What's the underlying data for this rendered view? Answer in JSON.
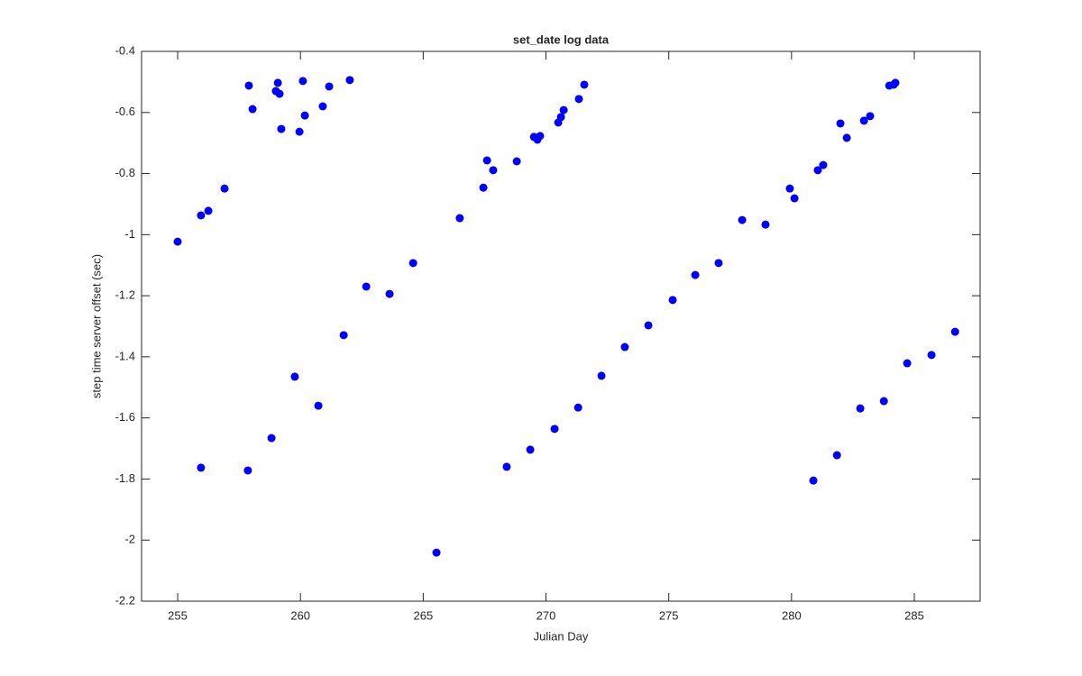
{
  "chart_data": {
    "type": "scatter",
    "title": "set_date log data",
    "x_label": "Julian Day",
    "y_label": "step time server offset (sec)",
    "color": "#0000ff",
    "x": [
      255.0,
      255.95,
      256.25,
      256.91,
      255.95,
      257.9,
      258.05,
      257.86,
      259.0,
      259.08,
      259.15,
      259.22,
      258.82,
      259.77,
      259.96,
      260.1,
      260.18,
      260.73,
      260.91,
      261.17,
      261.76,
      262.01,
      262.68,
      263.63,
      264.59,
      265.54,
      266.49,
      267.45,
      267.6,
      267.85,
      268.4,
      268.81,
      269.36,
      269.51,
      269.65,
      269.76,
      270.35,
      270.5,
      270.61,
      270.72,
      271.31,
      271.34,
      271.56,
      272.26,
      273.21,
      274.17,
      275.16,
      276.08,
      277.03,
      277.99,
      278.94,
      279.93,
      280.12,
      280.89,
      281.07,
      281.29,
      281.85,
      281.99,
      282.25,
      282.8,
      282.95,
      283.2,
      283.76,
      283.98,
      284.16,
      284.23,
      284.71,
      285.7,
      286.66
    ],
    "values": [
      -1.023,
      -0.937,
      -0.922,
      -0.849,
      -1.763,
      -0.512,
      -0.589,
      -1.772,
      -0.53,
      -0.503,
      -0.539,
      -0.654,
      -1.666,
      -1.465,
      -0.663,
      -0.497,
      -0.61,
      -1.56,
      -0.58,
      -0.515,
      -1.329,
      -0.494,
      -1.17,
      -1.194,
      -1.093,
      -2.041,
      -0.946,
      -0.846,
      -0.757,
      -0.789,
      -1.76,
      -0.76,
      -1.704,
      -0.68,
      -0.689,
      -0.677,
      -1.636,
      -0.633,
      -0.615,
      -0.592,
      -1.566,
      -0.556,
      -0.509,
      -1.462,
      -1.368,
      -1.297,
      -1.214,
      -1.132,
      -1.093,
      -0.952,
      -0.967,
      -0.849,
      -0.881,
      -1.805,
      -0.789,
      -0.772,
      -1.722,
      -0.636,
      -0.683,
      -1.569,
      -0.627,
      -0.612,
      -1.545,
      -0.512,
      -0.509,
      -0.503,
      -1.421,
      -1.394,
      -1.318
    ],
    "xlim": [
      253.53,
      287.68
    ],
    "xticks": [
      255,
      260,
      265,
      270,
      275,
      280,
      285
    ],
    "ylim": [
      -2.2,
      -0.4
    ],
    "yticks": [
      -2.2,
      -2,
      -1.8,
      -1.6,
      -1.4,
      -1.2,
      -1,
      -0.8,
      -0.6,
      -0.4
    ],
    "grid": false
  }
}
